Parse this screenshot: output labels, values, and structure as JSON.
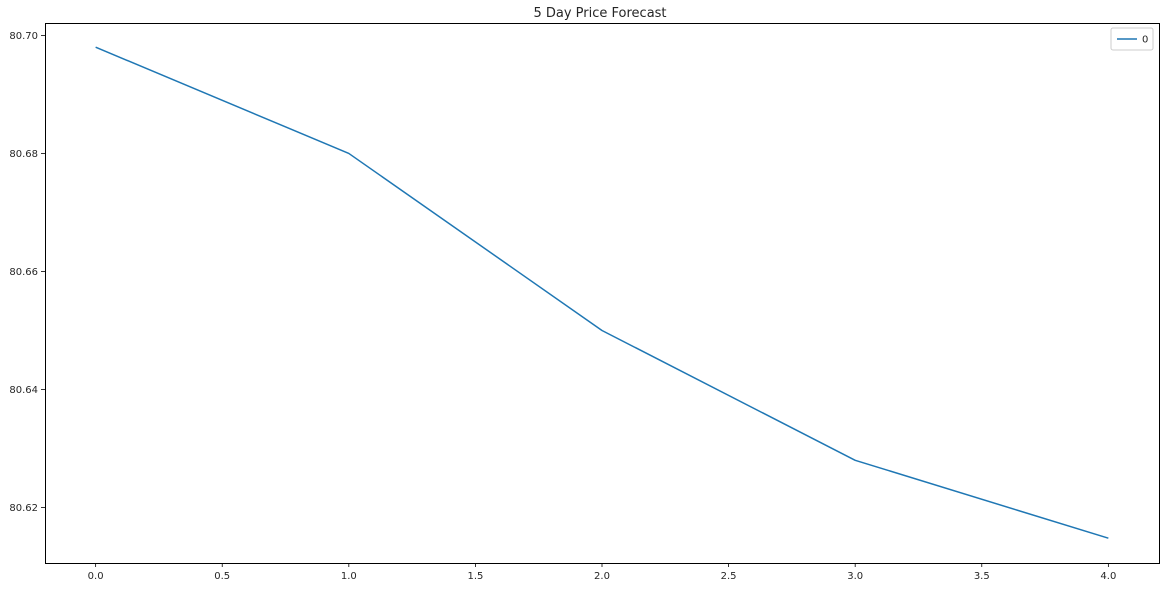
{
  "chart_data": {
    "type": "line",
    "title": "5 Day Price Forecast",
    "xlabel": "",
    "ylabel": "",
    "x": [
      0,
      1,
      2,
      3,
      4
    ],
    "series": [
      {
        "name": "0",
        "values": [
          80.698,
          80.68,
          80.65,
          80.628,
          80.6148
        ],
        "color": "#1f77b4"
      }
    ],
    "xlim": [
      -0.2,
      4.2
    ],
    "ylim": [
      80.6106,
      80.7021
    ],
    "xticks": [
      0.0,
      0.5,
      1.0,
      1.5,
      2.0,
      2.5,
      3.0,
      3.5,
      4.0
    ],
    "xtick_labels": [
      "0.0",
      "0.5",
      "1.0",
      "1.5",
      "2.0",
      "2.5",
      "3.0",
      "3.5",
      "4.0"
    ],
    "yticks": [
      80.62,
      80.64,
      80.66,
      80.68,
      80.7
    ],
    "ytick_labels": [
      "80.62",
      "80.64",
      "80.66",
      "80.68",
      "80.70"
    ],
    "grid": false,
    "legend_position": "top-right"
  }
}
